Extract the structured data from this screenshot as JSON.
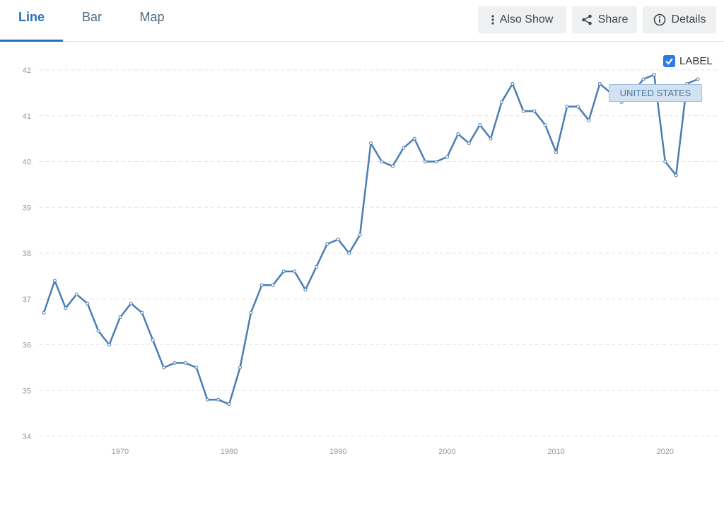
{
  "tabs": [
    {
      "label": "Line"
    },
    {
      "label": "Bar"
    },
    {
      "label": "Map"
    }
  ],
  "toolbar": {
    "also_show_label": "Also Show",
    "share_label": "Share",
    "details_label": "Details"
  },
  "legend": {
    "checkbox_label": "LABEL",
    "checked": true
  },
  "tooltip": {
    "text": "UNITED STATES"
  },
  "colors": {
    "series": "#4a7db3",
    "accent": "#2a6fba"
  },
  "chart_data": {
    "type": "line",
    "title": "",
    "xlabel": "",
    "ylabel": "",
    "grid": true,
    "ylim": [
      34,
      42
    ],
    "yticks": [
      34,
      35,
      36,
      37,
      38,
      39,
      40,
      41,
      42
    ],
    "xticks": [
      1970,
      1980,
      1990,
      2000,
      2010,
      2020
    ],
    "series": [
      {
        "name": "UNITED STATES",
        "x": [
          1963,
          1964,
          1965,
          1966,
          1967,
          1968,
          1969,
          1970,
          1971,
          1972,
          1973,
          1974,
          1975,
          1976,
          1977,
          1978,
          1979,
          1980,
          1981,
          1982,
          1983,
          1984,
          1985,
          1986,
          1987,
          1988,
          1989,
          1990,
          1991,
          1992,
          1993,
          1994,
          1995,
          1996,
          1997,
          1998,
          1999,
          2000,
          2001,
          2002,
          2003,
          2004,
          2005,
          2006,
          2007,
          2008,
          2009,
          2010,
          2011,
          2012,
          2013,
          2014,
          2015,
          2016,
          2017,
          2018,
          2019,
          2020,
          2021,
          2022,
          2023
        ],
        "values": [
          36.7,
          37.4,
          36.8,
          37.1,
          36.9,
          36.3,
          36.0,
          36.6,
          36.9,
          36.7,
          36.1,
          35.5,
          35.6,
          35.6,
          35.5,
          34.8,
          34.8,
          34.7,
          35.5,
          36.7,
          37.3,
          37.3,
          37.6,
          37.6,
          37.2,
          37.7,
          38.2,
          38.3,
          38.0,
          38.4,
          40.4,
          40.0,
          39.9,
          40.3,
          40.5,
          40.0,
          40.0,
          40.1,
          40.6,
          40.4,
          40.8,
          40.5,
          41.3,
          41.7,
          41.1,
          41.1,
          40.8,
          40.2,
          41.2,
          41.2,
          40.9,
          41.7,
          41.5,
          41.3,
          41.5,
          41.8,
          41.9,
          40.0,
          39.7,
          41.7,
          41.8
        ]
      }
    ]
  }
}
